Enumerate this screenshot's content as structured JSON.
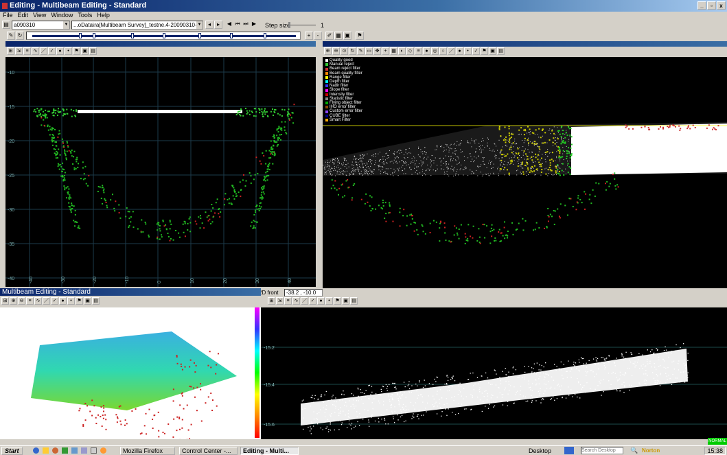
{
  "window": {
    "title": "Editing - Multibeam Editing - Standard"
  },
  "menu": [
    "File",
    "Edit",
    "View",
    "Window",
    "Tools",
    "Help"
  ],
  "toolbar": {
    "vessel_value": "a090310",
    "file_value": "...oData\\ra[Multibeam Survey]_testne.4-20090310-163",
    "step_size_label": "Step size",
    "step_size_value": "1"
  },
  "pane_left": {
    "y_ticks": [
      "-10",
      "-15",
      "-20",
      "-25",
      "-30",
      "-35",
      "-40"
    ],
    "x_ticks": [
      "-40",
      "-30",
      "-20",
      "-10",
      "0",
      "10",
      "20",
      "30",
      "40"
    ]
  },
  "pane_3d": {
    "legend": [
      {
        "label": "Quality good",
        "color": "#ffffff"
      },
      {
        "label": "Manual reject",
        "color": "#33cc33"
      },
      {
        "label": "Beam reject filter",
        "color": "#cc3333"
      },
      {
        "label": "Beam quality filter",
        "color": "#ff8800"
      },
      {
        "label": "Range filter",
        "color": "#ffff00"
      },
      {
        "label": "Depth filter",
        "color": "#00ffff"
      },
      {
        "label": "Nadir filter",
        "color": "#3333ff"
      },
      {
        "label": "Slope filter",
        "color": "#ff00ff"
      },
      {
        "label": "Intensity filter",
        "color": "#cc0000"
      },
      {
        "label": "Statistic filter",
        "color": "#888888"
      },
      {
        "label": "Flying object filter",
        "color": "#00aa00"
      },
      {
        "label": "IHO error filter",
        "color": "#884400"
      },
      {
        "label": "Custom error filter",
        "color": "#8844ff"
      },
      {
        "label": "CUBE filter",
        "color": "#000088"
      },
      {
        "label": "Smart Filter",
        "color": "#ffaa00"
      }
    ]
  },
  "pane_bottom_left": {
    "title": "Multibeam Editing - Standard"
  },
  "pane_bottom_right": {
    "title": "2D front",
    "readout": "-38.2 , -10.0",
    "y_ticks": [
      "-15.2",
      "-15.4",
      "-15.6"
    ]
  },
  "taskbar": {
    "start": "Start",
    "tasks": [
      "Mozilla Firefox",
      "Control Center -...",
      "Editing - Multi..."
    ],
    "desktop_label": "Desktop",
    "search_placeholder": "Search Desktop",
    "norton": "Norton",
    "clock": "15:38",
    "status": "NORMAL"
  }
}
